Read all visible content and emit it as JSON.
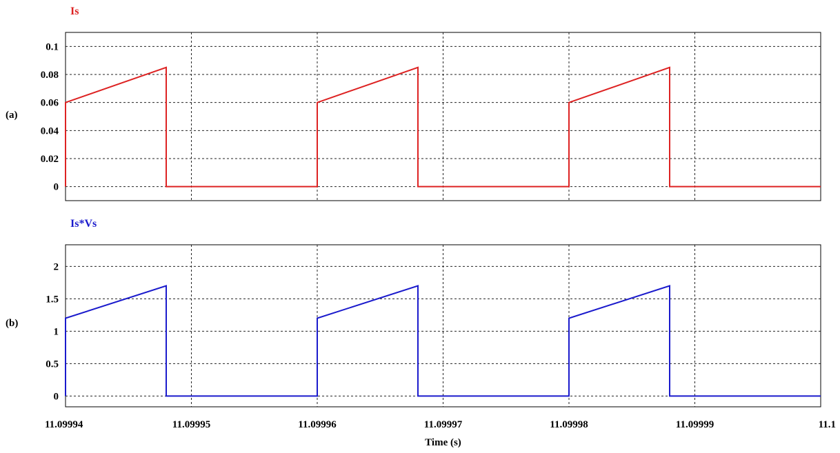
{
  "chart_data": [
    {
      "panel_label": "(a)",
      "type": "line",
      "series": [
        {
          "name": "Is",
          "color": "#dd2222",
          "x": [
            11.09994,
            11.09994,
            11.099948,
            11.099948,
            11.09996,
            11.09996,
            11.099968,
            11.099968,
            11.09998,
            11.09998,
            11.099988,
            11.099988,
            11.1
          ],
          "y": [
            0,
            0.06,
            0.085,
            0,
            0,
            0.06,
            0.085,
            0,
            0,
            0.06,
            0.085,
            0,
            0
          ]
        }
      ],
      "yticks": [
        "0",
        "0.02",
        "0.04",
        "0.06",
        "0.08",
        "0.1"
      ],
      "ytick_values": [
        0,
        0.02,
        0.04,
        0.06,
        0.08,
        0.1
      ],
      "ylim": [
        -0.01,
        0.11
      ],
      "xlim": [
        11.09994,
        11.1
      ],
      "grid": true
    },
    {
      "panel_label": "(b)",
      "type": "line",
      "series": [
        {
          "name": "Is*Vs",
          "color": "#1a1acc",
          "x": [
            11.09994,
            11.09994,
            11.099948,
            11.099948,
            11.09996,
            11.09996,
            11.099968,
            11.099968,
            11.09998,
            11.09998,
            11.099988,
            11.099988,
            11.1
          ],
          "y": [
            0,
            1.2,
            1.7,
            0,
            0,
            1.2,
            1.7,
            0,
            0,
            1.2,
            1.7,
            0,
            0
          ]
        }
      ],
      "yticks": [
        "0",
        "0.5",
        "1",
        "1.5",
        "2"
      ],
      "ytick_values": [
        0,
        0.5,
        1,
        1.5,
        2
      ],
      "ylim": [
        -0.1666667,
        2.3333333
      ],
      "xlim": [
        11.09994,
        11.1
      ],
      "grid": true
    }
  ],
  "x_axis": {
    "label": "Time (s)",
    "ticks": [
      "11.09994",
      "11.09995",
      "11.09996",
      "11.09997",
      "11.09998",
      "11.09999",
      "11.1"
    ],
    "tick_values": [
      11.09994,
      11.09995,
      11.09996,
      11.09997,
      11.09998,
      11.09999,
      11.1
    ]
  }
}
